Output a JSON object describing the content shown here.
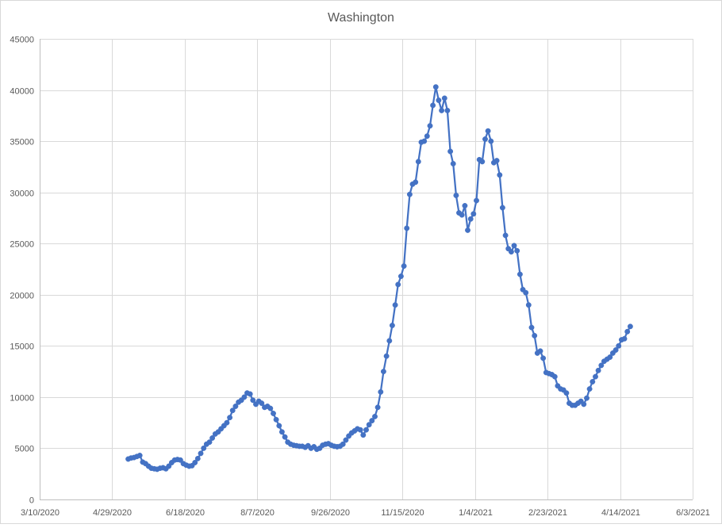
{
  "chart_data": {
    "type": "line",
    "title": "Washington",
    "xlabel": "",
    "ylabel": "",
    "grid": true,
    "legend": "none",
    "x_axis": {
      "type": "date",
      "min": "2020-03-10",
      "max": "2021-06-03",
      "ticks": [
        "2020-03-10",
        "2020-04-29",
        "2020-06-18",
        "2020-08-07",
        "2020-09-26",
        "2020-11-15",
        "2021-01-04",
        "2021-02-23",
        "2021-04-14",
        "2021-06-03"
      ],
      "tick_labels": [
        "3/10/2020",
        "4/29/2020",
        "6/18/2020",
        "8/7/2020",
        "9/26/2020",
        "11/15/2020",
        "1/4/2021",
        "2/23/2021",
        "4/14/2021",
        "6/3/2021"
      ]
    },
    "y_axis": {
      "min": 0,
      "max": 45000,
      "ticks": [
        0,
        5000,
        10000,
        15000,
        20000,
        25000,
        30000,
        35000,
        40000,
        45000
      ],
      "tick_labels": [
        "0",
        "5000",
        "10000",
        "15000",
        "20000",
        "25000",
        "30000",
        "35000",
        "40000",
        "45000"
      ]
    },
    "colors": {
      "series": "#4472c4",
      "grid": "#d9d9d9",
      "axis": "#bfbfbf",
      "text": "#595959"
    },
    "series": [
      {
        "values": [
          [
            "2020-05-10",
            3950
          ],
          [
            "2020-05-12",
            4050
          ],
          [
            "2020-05-14",
            4100
          ],
          [
            "2020-05-16",
            4200
          ],
          [
            "2020-05-18",
            4300
          ],
          [
            "2020-05-20",
            3650
          ],
          [
            "2020-05-22",
            3500
          ],
          [
            "2020-05-24",
            3250
          ],
          [
            "2020-05-26",
            3050
          ],
          [
            "2020-05-28",
            3000
          ],
          [
            "2020-05-30",
            2950
          ],
          [
            "2020-06-01",
            3050
          ],
          [
            "2020-06-03",
            3100
          ],
          [
            "2020-06-05",
            3000
          ],
          [
            "2020-06-07",
            3250
          ],
          [
            "2020-06-09",
            3600
          ],
          [
            "2020-06-11",
            3850
          ],
          [
            "2020-06-13",
            3900
          ],
          [
            "2020-06-15",
            3850
          ],
          [
            "2020-06-17",
            3500
          ],
          [
            "2020-06-19",
            3350
          ],
          [
            "2020-06-21",
            3250
          ],
          [
            "2020-06-23",
            3300
          ],
          [
            "2020-06-25",
            3600
          ],
          [
            "2020-06-27",
            4000
          ],
          [
            "2020-06-29",
            4500
          ],
          [
            "2020-07-01",
            5000
          ],
          [
            "2020-07-03",
            5400
          ],
          [
            "2020-07-05",
            5600
          ],
          [
            "2020-07-07",
            6000
          ],
          [
            "2020-07-09",
            6400
          ],
          [
            "2020-07-11",
            6600
          ],
          [
            "2020-07-13",
            6900
          ],
          [
            "2020-07-15",
            7200
          ],
          [
            "2020-07-17",
            7500
          ],
          [
            "2020-07-19",
            8000
          ],
          [
            "2020-07-21",
            8700
          ],
          [
            "2020-07-23",
            9100
          ],
          [
            "2020-07-25",
            9500
          ],
          [
            "2020-07-27",
            9700
          ],
          [
            "2020-07-29",
            10000
          ],
          [
            "2020-07-31",
            10400
          ],
          [
            "2020-08-02",
            10300
          ],
          [
            "2020-08-04",
            9700
          ],
          [
            "2020-08-06",
            9300
          ],
          [
            "2020-08-08",
            9600
          ],
          [
            "2020-08-10",
            9400
          ],
          [
            "2020-08-12",
            9000
          ],
          [
            "2020-08-14",
            9100
          ],
          [
            "2020-08-16",
            8900
          ],
          [
            "2020-08-18",
            8400
          ],
          [
            "2020-08-20",
            7800
          ],
          [
            "2020-08-22",
            7200
          ],
          [
            "2020-08-24",
            6600
          ],
          [
            "2020-08-26",
            6100
          ],
          [
            "2020-08-28",
            5600
          ],
          [
            "2020-08-30",
            5400
          ],
          [
            "2020-09-01",
            5300
          ],
          [
            "2020-09-03",
            5250
          ],
          [
            "2020-09-05",
            5200
          ],
          [
            "2020-09-07",
            5200
          ],
          [
            "2020-09-09",
            5100
          ],
          [
            "2020-09-11",
            5250
          ],
          [
            "2020-09-13",
            5000
          ],
          [
            "2020-09-15",
            5150
          ],
          [
            "2020-09-17",
            4900
          ],
          [
            "2020-09-19",
            5000
          ],
          [
            "2020-09-21",
            5300
          ],
          [
            "2020-09-23",
            5400
          ],
          [
            "2020-09-25",
            5450
          ],
          [
            "2020-09-27",
            5300
          ],
          [
            "2020-09-29",
            5200
          ],
          [
            "2020-10-01",
            5150
          ],
          [
            "2020-10-03",
            5200
          ],
          [
            "2020-10-05",
            5400
          ],
          [
            "2020-10-07",
            5800
          ],
          [
            "2020-10-09",
            6200
          ],
          [
            "2020-10-11",
            6500
          ],
          [
            "2020-10-13",
            6700
          ],
          [
            "2020-10-15",
            6900
          ],
          [
            "2020-10-17",
            6800
          ],
          [
            "2020-10-19",
            6300
          ],
          [
            "2020-10-21",
            6800
          ],
          [
            "2020-10-23",
            7300
          ],
          [
            "2020-10-25",
            7700
          ],
          [
            "2020-10-27",
            8100
          ],
          [
            "2020-10-29",
            9000
          ],
          [
            "2020-10-31",
            10500
          ],
          [
            "2020-11-02",
            12500
          ],
          [
            "2020-11-04",
            14000
          ],
          [
            "2020-11-06",
            15500
          ],
          [
            "2020-11-08",
            17000
          ],
          [
            "2020-11-10",
            19000
          ],
          [
            "2020-11-12",
            21000
          ],
          [
            "2020-11-14",
            21800
          ],
          [
            "2020-11-16",
            22800
          ],
          [
            "2020-11-18",
            26500
          ],
          [
            "2020-11-20",
            29800
          ],
          [
            "2020-11-22",
            30800
          ],
          [
            "2020-11-24",
            31000
          ],
          [
            "2020-11-26",
            33000
          ],
          [
            "2020-11-28",
            34900
          ],
          [
            "2020-11-30",
            35000
          ],
          [
            "2020-12-02",
            35500
          ],
          [
            "2020-12-04",
            36500
          ],
          [
            "2020-12-06",
            38500
          ],
          [
            "2020-12-08",
            40300
          ],
          [
            "2020-12-10",
            39000
          ],
          [
            "2020-12-12",
            38000
          ],
          [
            "2020-12-14",
            39200
          ],
          [
            "2020-12-16",
            38000
          ],
          [
            "2020-12-18",
            34000
          ],
          [
            "2020-12-20",
            32800
          ],
          [
            "2020-12-22",
            29700
          ],
          [
            "2020-12-24",
            28000
          ],
          [
            "2020-12-26",
            27800
          ],
          [
            "2020-12-28",
            28700
          ],
          [
            "2020-12-30",
            26300
          ],
          [
            "2021-01-01",
            27400
          ],
          [
            "2021-01-03",
            27900
          ],
          [
            "2021-01-05",
            29200
          ],
          [
            "2021-01-07",
            33200
          ],
          [
            "2021-01-09",
            33000
          ],
          [
            "2021-01-11",
            35200
          ],
          [
            "2021-01-13",
            36000
          ],
          [
            "2021-01-15",
            35000
          ],
          [
            "2021-01-17",
            32900
          ],
          [
            "2021-01-19",
            33100
          ],
          [
            "2021-01-21",
            31700
          ],
          [
            "2021-01-23",
            28500
          ],
          [
            "2021-01-25",
            25800
          ],
          [
            "2021-01-27",
            24500
          ],
          [
            "2021-01-29",
            24200
          ],
          [
            "2021-01-31",
            24800
          ],
          [
            "2021-02-02",
            24300
          ],
          [
            "2021-02-04",
            22000
          ],
          [
            "2021-02-06",
            20500
          ],
          [
            "2021-02-08",
            20200
          ],
          [
            "2021-02-10",
            19000
          ],
          [
            "2021-02-12",
            16800
          ],
          [
            "2021-02-14",
            16000
          ],
          [
            "2021-02-16",
            14300
          ],
          [
            "2021-02-18",
            14500
          ],
          [
            "2021-02-20",
            13800
          ],
          [
            "2021-02-22",
            12400
          ],
          [
            "2021-02-24",
            12300
          ],
          [
            "2021-02-26",
            12200
          ],
          [
            "2021-02-28",
            12000
          ],
          [
            "2021-03-02",
            11100
          ],
          [
            "2021-03-04",
            10800
          ],
          [
            "2021-03-06",
            10700
          ],
          [
            "2021-03-08",
            10400
          ],
          [
            "2021-03-10",
            9400
          ],
          [
            "2021-03-12",
            9200
          ],
          [
            "2021-03-14",
            9200
          ],
          [
            "2021-03-16",
            9400
          ],
          [
            "2021-03-18",
            9600
          ],
          [
            "2021-03-20",
            9300
          ],
          [
            "2021-03-22",
            9900
          ],
          [
            "2021-03-24",
            10800
          ],
          [
            "2021-03-26",
            11500
          ],
          [
            "2021-03-28",
            12000
          ],
          [
            "2021-03-30",
            12600
          ],
          [
            "2021-04-01",
            13100
          ],
          [
            "2021-04-03",
            13500
          ],
          [
            "2021-04-05",
            13700
          ],
          [
            "2021-04-07",
            13900
          ],
          [
            "2021-04-09",
            14300
          ],
          [
            "2021-04-11",
            14600
          ],
          [
            "2021-04-13",
            15000
          ],
          [
            "2021-04-15",
            15600
          ],
          [
            "2021-04-17",
            15700
          ],
          [
            "2021-04-19",
            16400
          ],
          [
            "2021-04-21",
            16900
          ]
        ]
      }
    ]
  }
}
